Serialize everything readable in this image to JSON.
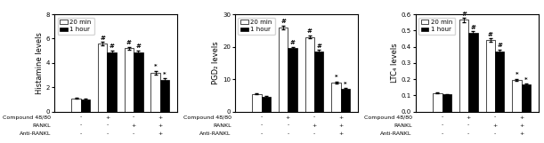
{
  "chart_data": [
    {
      "type": "bar",
      "ylabel": "Histamine levels",
      "categories": [
        null,
        null,
        null,
        null
      ],
      "category_rows": [
        {
          "name": "Compound 48/80",
          "labels": [
            "-",
            "+",
            "-",
            "+"
          ]
        },
        {
          "name": "RANKL",
          "labels": [
            "-",
            "-",
            "+",
            "+"
          ]
        },
        {
          "name": "Anti-RANKL",
          "labels": [
            "-",
            "-",
            "-",
            "+"
          ]
        }
      ],
      "series": [
        {
          "name": "20 min",
          "color": "white",
          "values": [
            1.1,
            5.6,
            5.2,
            3.2
          ],
          "errors": [
            0.05,
            0.12,
            0.12,
            0.15
          ],
          "labels_above": [
            null,
            "#",
            "#",
            "*"
          ]
        },
        {
          "name": "1 hour",
          "color": "black",
          "values": [
            1.0,
            4.9,
            4.9,
            2.6
          ],
          "errors": [
            0.05,
            0.12,
            0.12,
            0.15
          ],
          "labels_above": [
            null,
            "#",
            "#",
            "*"
          ]
        }
      ],
      "ylim": [
        0,
        8
      ],
      "yticks": [
        0,
        2,
        4,
        6,
        8
      ],
      "legend": "upper left"
    },
    {
      "type": "bar",
      "ylabel": "PGD₂ levels",
      "categories": [
        null,
        null,
        null,
        null
      ],
      "category_rows": [
        {
          "name": "Compound 48/80",
          "labels": [
            "-",
            "+",
            "-",
            "+"
          ]
        },
        {
          "name": "RANKL",
          "labels": [
            "-",
            "-",
            "+",
            "+"
          ]
        },
        {
          "name": "Anti-RANKL",
          "labels": [
            "-",
            "-",
            "-",
            "+"
          ]
        }
      ],
      "series": [
        {
          "name": "20 min",
          "color": "white",
          "values": [
            5.5,
            26.0,
            23.0,
            9.0
          ],
          "errors": [
            0.2,
            0.5,
            0.5,
            0.3
          ],
          "labels_above": [
            null,
            "#",
            "#",
            "*"
          ]
        },
        {
          "name": "1 hour",
          "color": "black",
          "values": [
            4.5,
            19.5,
            18.5,
            7.0
          ],
          "errors": [
            0.2,
            0.5,
            0.5,
            0.3
          ],
          "labels_above": [
            null,
            "#",
            "#",
            "*"
          ]
        }
      ],
      "ylim": [
        0,
        30
      ],
      "yticks": [
        0,
        10,
        20,
        30
      ],
      "legend": "upper left"
    },
    {
      "type": "bar",
      "ylabel": "LTC₄ levels",
      "categories": [
        null,
        null,
        null,
        null
      ],
      "category_rows": [
        {
          "name": "Compound 48/80",
          "labels": [
            "-",
            "+",
            "-",
            "+"
          ]
        },
        {
          "name": "RANKL",
          "labels": [
            "-",
            "-",
            "+",
            "+"
          ]
        },
        {
          "name": "Anti-RANKL",
          "labels": [
            "-",
            "-",
            "-",
            "+"
          ]
        }
      ],
      "series": [
        {
          "name": "20 min",
          "color": "white",
          "values": [
            0.115,
            0.565,
            0.44,
            0.195
          ],
          "errors": [
            0.004,
            0.012,
            0.012,
            0.008
          ],
          "labels_above": [
            null,
            "#",
            "#",
            "*"
          ]
        },
        {
          "name": "1 hour",
          "color": "black",
          "values": [
            0.105,
            0.485,
            0.37,
            0.165
          ],
          "errors": [
            0.004,
            0.012,
            0.012,
            0.008
          ],
          "labels_above": [
            null,
            "#",
            "#",
            "*"
          ]
        }
      ],
      "ylim": [
        0.0,
        0.6
      ],
      "yticks": [
        0.0,
        0.1,
        0.2,
        0.3,
        0.4,
        0.5,
        0.6
      ],
      "legend": "upper left"
    }
  ]
}
